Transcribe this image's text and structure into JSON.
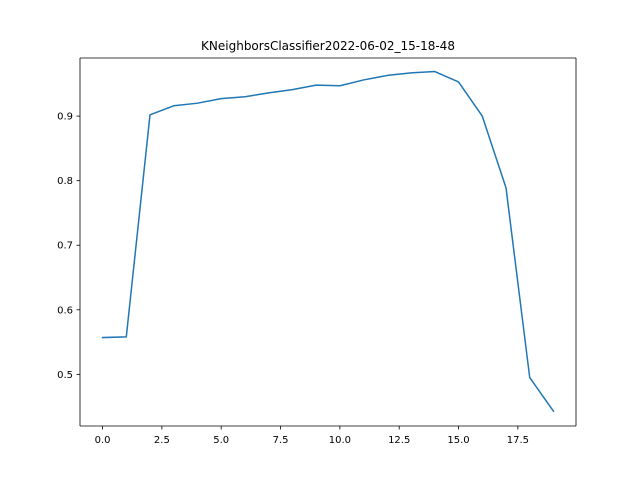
{
  "chart_data": {
    "type": "line",
    "title": "KNeighborsClassifier2022-06-02_15-18-48",
    "xlabel": "",
    "ylabel": "",
    "xlim": [
      -0.95,
      19.95
    ],
    "ylim": [
      0.42,
      0.99
    ],
    "grid": false,
    "legend": "none",
    "x_ticks": [
      0.0,
      2.5,
      5.0,
      7.5,
      10.0,
      12.5,
      15.0,
      17.5
    ],
    "x_tick_labels": [
      "0.0",
      "2.5",
      "5.0",
      "7.5",
      "10.0",
      "12.5",
      "15.0",
      "17.5"
    ],
    "y_ticks": [
      0.5,
      0.6,
      0.7,
      0.8,
      0.9
    ],
    "y_tick_labels": [
      "0.5",
      "0.6",
      "0.7",
      "0.8",
      "0.9"
    ],
    "series": [
      {
        "color": "#1f77b4",
        "x": [
          0,
          1,
          2,
          3,
          4,
          5,
          6,
          7,
          8,
          9,
          10,
          11,
          12,
          13,
          14,
          15,
          16,
          17,
          18,
          19
        ],
        "values": [
          0.557,
          0.558,
          0.902,
          0.916,
          0.92,
          0.927,
          0.93,
          0.936,
          0.941,
          0.948,
          0.947,
          0.956,
          0.963,
          0.967,
          0.969,
          0.953,
          0.9,
          0.789,
          0.495,
          0.443
        ]
      }
    ]
  }
}
